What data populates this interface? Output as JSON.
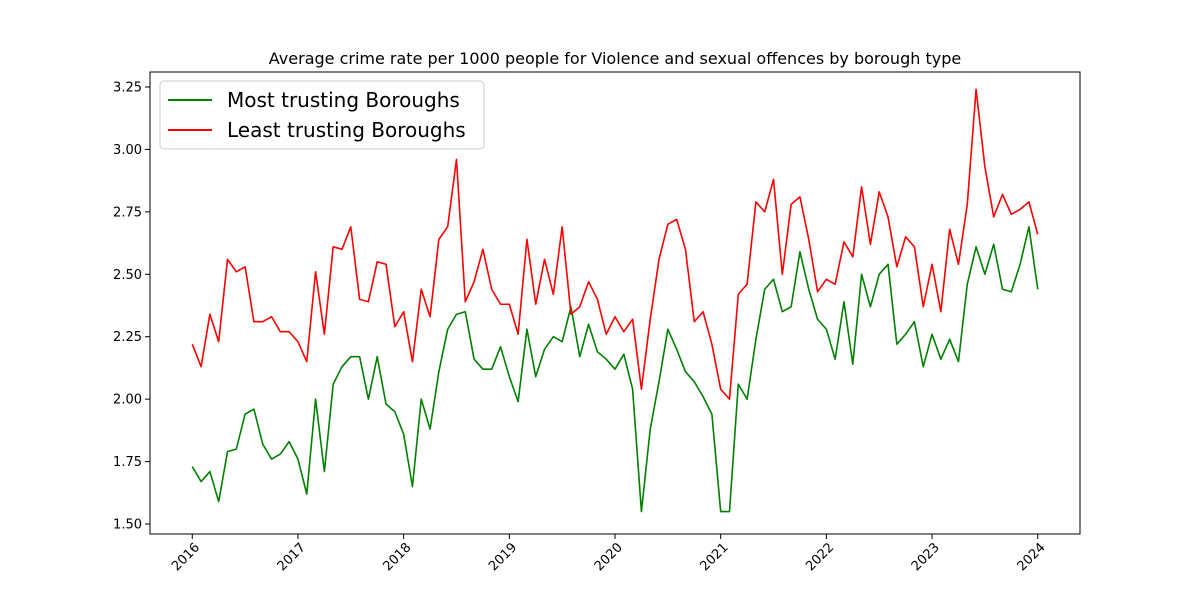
{
  "chart_data": {
    "type": "line",
    "title": "Average crime rate per 1000 people for Violence and sexual offences by borough type",
    "xlabel": "",
    "ylabel": "",
    "x_start": "2016-01",
    "x_step": "month",
    "xlim": [
      2015.6,
      2024.4
    ],
    "ylim": [
      1.46,
      3.31
    ],
    "yticks": [
      "1.50",
      "1.75",
      "2.00",
      "2.25",
      "2.50",
      "2.75",
      "3.00",
      "3.25"
    ],
    "xticks": [
      "2016",
      "2017",
      "2018",
      "2019",
      "2020",
      "2021",
      "2022",
      "2023",
      "2024"
    ],
    "grid": false,
    "legend_position": "top-left",
    "series": [
      {
        "name": "Most trusting Boroughs",
        "color": "#008000",
        "values": [
          1.73,
          1.67,
          1.71,
          1.59,
          1.79,
          1.8,
          1.94,
          1.96,
          1.82,
          1.76,
          1.78,
          1.83,
          1.76,
          1.62,
          2.0,
          1.71,
          2.06,
          2.13,
          2.17,
          2.17,
          2.0,
          2.17,
          1.98,
          1.95,
          1.86,
          1.65,
          2.0,
          1.88,
          2.11,
          2.28,
          2.34,
          2.35,
          2.16,
          2.12,
          2.12,
          2.21,
          2.09,
          1.99,
          2.28,
          2.09,
          2.2,
          2.25,
          2.23,
          2.37,
          2.17,
          2.3,
          2.19,
          2.16,
          2.12,
          2.18,
          2.04,
          1.55,
          1.88,
          2.07,
          2.28,
          2.2,
          2.11,
          2.07,
          2.01,
          1.94,
          1.55,
          1.55,
          2.06,
          2.0,
          2.24,
          2.44,
          2.48,
          2.35,
          2.37,
          2.59,
          2.44,
          2.32,
          2.28,
          2.16,
          2.39,
          2.14,
          2.5,
          2.37,
          2.5,
          2.54,
          2.22,
          2.26,
          2.31,
          2.13,
          2.26,
          2.16,
          2.24,
          2.15,
          2.46,
          2.61,
          2.5,
          2.62,
          2.44,
          2.43,
          2.54,
          2.69,
          2.44
        ]
      },
      {
        "name": "Least trusting Boroughs",
        "color": "#ff0000",
        "values": [
          2.22,
          2.13,
          2.34,
          2.23,
          2.56,
          2.51,
          2.53,
          2.31,
          2.31,
          2.33,
          2.27,
          2.27,
          2.23,
          2.15,
          2.51,
          2.26,
          2.61,
          2.6,
          2.69,
          2.4,
          2.39,
          2.55,
          2.54,
          2.29,
          2.35,
          2.15,
          2.44,
          2.33,
          2.64,
          2.69,
          2.96,
          2.39,
          2.47,
          2.6,
          2.44,
          2.38,
          2.38,
          2.26,
          2.64,
          2.38,
          2.56,
          2.42,
          2.69,
          2.34,
          2.37,
          2.47,
          2.4,
          2.26,
          2.33,
          2.27,
          2.32,
          2.04,
          2.32,
          2.56,
          2.7,
          2.72,
          2.6,
          2.31,
          2.35,
          2.22,
          2.04,
          2.0,
          2.42,
          2.46,
          2.79,
          2.75,
          2.88,
          2.5,
          2.78,
          2.81,
          2.64,
          2.43,
          2.48,
          2.46,
          2.63,
          2.57,
          2.85,
          2.62,
          2.83,
          2.73,
          2.53,
          2.65,
          2.61,
          2.37,
          2.54,
          2.35,
          2.68,
          2.54,
          2.78,
          3.24,
          2.93,
          2.73,
          2.82,
          2.74,
          2.76,
          2.79,
          2.66
        ]
      }
    ]
  }
}
